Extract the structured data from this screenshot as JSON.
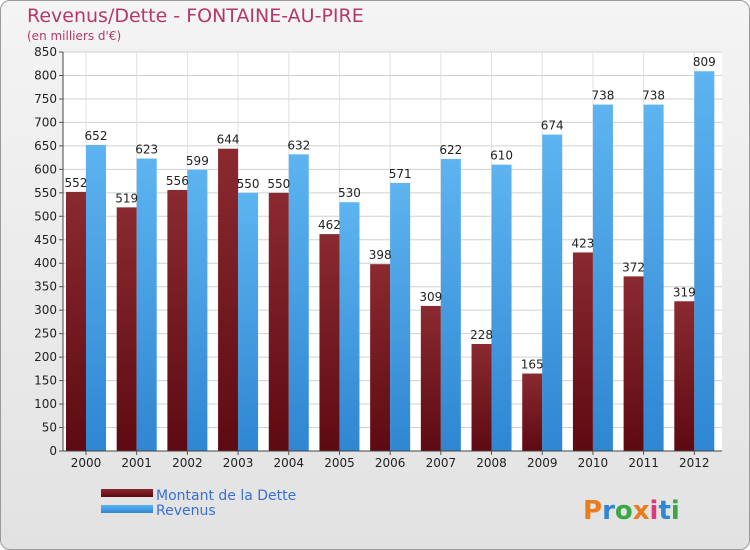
{
  "chart_data": {
    "type": "bar",
    "title": "Revenus/Dette - FONTAINE-AU-PIRE",
    "subtitle": "(en milliers d'€)",
    "categories": [
      "2000",
      "2001",
      "2002",
      "2003",
      "2004",
      "2005",
      "2006",
      "2007",
      "2008",
      "2009",
      "2010",
      "2011",
      "2012"
    ],
    "series": [
      {
        "name": "Montant de la Dette",
        "values": [
          552,
          519,
          556,
          644,
          550,
          462,
          398,
          309,
          228,
          165,
          423,
          372,
          319
        ],
        "color": "#7a1620"
      },
      {
        "name": "Revenus",
        "values": [
          652,
          623,
          599,
          550,
          632,
          530,
          571,
          622,
          610,
          674,
          738,
          738,
          809
        ],
        "color": "#4aa3e8"
      }
    ],
    "ylim": [
      0,
      850
    ],
    "ytick_step": 50,
    "grid": true,
    "legend": "bottom-left"
  },
  "logo": {
    "text": "Proxiti"
  }
}
